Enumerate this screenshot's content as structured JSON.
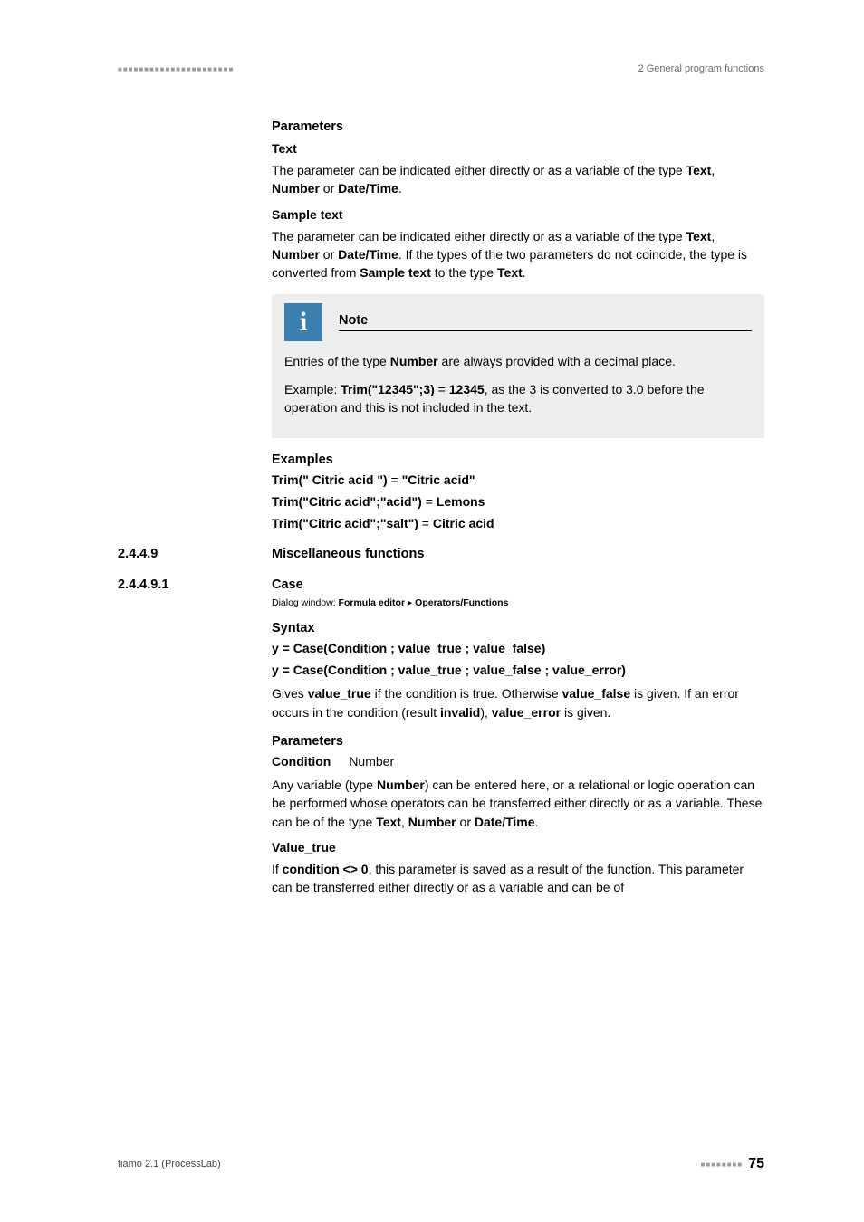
{
  "header": {
    "dots": "■■■■■■■■■■■■■■■■■■■■■■",
    "right": "2 General program functions"
  },
  "colors": {
    "text": "#000000",
    "muted": "#6a6a6a",
    "note_bg": "#eeeeee",
    "note_icon_bg": "#3a7fb0",
    "note_icon_fg": "#ffffff",
    "dots": "#9a9a9a",
    "background": "#ffffff"
  },
  "fonts": {
    "body_size": 14,
    "heading_size": 14.5,
    "small_size": 11,
    "dialog_size": 10.5
  },
  "params_h": "Parameters",
  "text_h": "Text",
  "text_p_pre": "The parameter can be indicated either directly or as a variable of the type ",
  "text_b1": "Text",
  "text_sep1": ", ",
  "text_b2": "Number",
  "text_or": " or ",
  "text_b3": "Date/Time",
  "text_end": ".",
  "sample_h": "Sample text",
  "sample_p_pre": "The parameter can be indicated either directly or as a variable of the type ",
  "sample_b1": "Text",
  "sample_sep1": ", ",
  "sample_b2": "Number",
  "sample_or": " or ",
  "sample_b3": "Date/Time",
  "sample_mid": ". If the types of the two parameters do not coincide, the type is converted from ",
  "sample_b4": "Sample text",
  "sample_to": " to the type ",
  "sample_b5": "Text",
  "sample_end": ".",
  "note": {
    "title": "Note",
    "icon": "i",
    "p1_pre": "Entries of the type ",
    "p1_b": "Number",
    "p1_post": " are always provided with a decimal place.",
    "p2_pre": "Example: ",
    "p2_b1": "Trim(\"12345\";3)",
    "p2_eq": " = ",
    "p2_b2": "12345",
    "p2_post": ", as the 3 is converted to 3.0 before the operation and this is not included in the text."
  },
  "examples_h": "Examples",
  "ex1_b1": "Trim(\" Citric acid \")",
  "ex1_eq": " = ",
  "ex1_b2": "\"Citric acid\"",
  "ex2_b1": "Trim(\"Citric acid\";\"acid\")",
  "ex2_eq": " = ",
  "ex2_b2": "Lemons",
  "ex3_b1": "Trim(\"Citric acid\";\"salt\")",
  "ex3_eq": " = ",
  "ex3_b2": "Citric acid",
  "sec1": {
    "num": "2.4.4.9",
    "title": "Miscellaneous functions"
  },
  "sec2": {
    "num": "2.4.4.9.1",
    "title": "Case"
  },
  "dialog_pre": "Dialog window: ",
  "dialog_b1": "Formula editor",
  "dialog_arrow": " ▸ ",
  "dialog_b2": "Operators/Functions",
  "syntax_h": "Syntax",
  "syntax1": "y = Case(Condition ; value_true ; value_false)",
  "syntax2": "y = Case(Condition ; value_true ; value_false ; value_error)",
  "gives_pre": "Gives ",
  "gives_b1": "value_true",
  "gives_mid1": " if the condition is true. Otherwise ",
  "gives_b2": "value_false",
  "gives_mid2": " is given. If an error occurs in the condition (result ",
  "gives_b3": "invalid",
  "gives_mid3": "), ",
  "gives_b4": "value_error",
  "gives_end": " is given.",
  "params2_h": "Parameters",
  "cond_label": "Condition",
  "cond_type": "Number",
  "cond_p_pre": "Any variable (type ",
  "cond_p_b1": "Number",
  "cond_p_mid": ") can be entered here, or a relational or logic operation can be performed whose operators can be transferred either directly or as a variable. These can be of the type ",
  "cond_p_b2": "Text",
  "cond_p_sep": ", ",
  "cond_p_b3": "Number",
  "cond_p_or": " or ",
  "cond_p_b4": "Date/Time",
  "cond_p_end": ".",
  "vtrue_h": "Value_true",
  "vtrue_pre": "If ",
  "vtrue_b": "condition <> 0",
  "vtrue_post": ", this parameter is saved as a result of the function. This parameter can be transferred either directly or as a variable and can be of",
  "footer": {
    "left": "tiamo 2.1 (ProcessLab)",
    "dots": "■■■■■■■■",
    "page": "75"
  }
}
